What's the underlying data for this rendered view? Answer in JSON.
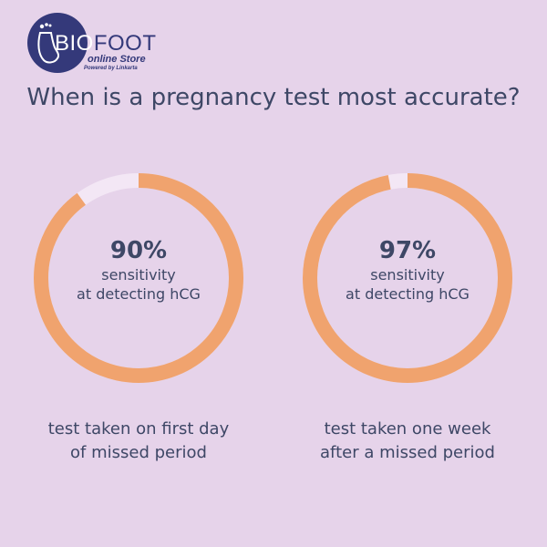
{
  "logo": {
    "brand_first": "BIO",
    "brand_rest": "FOOT",
    "sub": "online Store",
    "powered": "Powered by Linkarta"
  },
  "title": "When is a pregnancy test most accurate?",
  "colors": {
    "background": "#e6d3ea",
    "ring": "#f0a36e",
    "ring_remainder": "#f3e7f5",
    "text": "#3e4766",
    "logo": "#34397a"
  },
  "chart_data": [
    {
      "type": "pie",
      "variant": "donut",
      "value": 90,
      "max": 100,
      "label": "90%",
      "center_lines": [
        "sensitivity",
        "at detecting hCG"
      ],
      "caption_lines": [
        "test taken on first day",
        "of missed period"
      ]
    },
    {
      "type": "pie",
      "variant": "donut",
      "value": 97,
      "max": 100,
      "label": "97%",
      "center_lines": [
        "sensitivity",
        "at detecting hCG"
      ],
      "caption_lines": [
        "test taken one week",
        "after a missed period"
      ]
    }
  ]
}
